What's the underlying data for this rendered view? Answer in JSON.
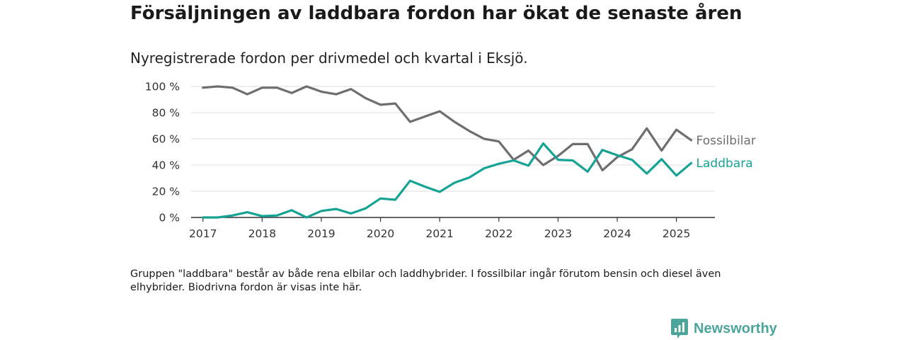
{
  "title": "Försäljningen av laddbara fordon har ökat de senaste åren",
  "subtitle": "Nyregistrerade fordon per drivmedel och kvartal i Eksjö.",
  "note": "Gruppen \"laddbara\" består av både rena elbilar och laddhybrider. I fossilbilar ingår förutom bensin och diesel även elhybrider. Biodrivna fordon är visas inte här.",
  "brand": "Newsworthy",
  "colors": {
    "fossil": "#6e6e72",
    "laddbara": "#16a393",
    "grid": "#dcdcdc",
    "axis": "#333333",
    "brand": "#4ba59a"
  },
  "chart_data": {
    "type": "line",
    "x_unit": "year (quarter start)",
    "x": [
      2017.0,
      2017.25,
      2017.5,
      2017.75,
      2018.0,
      2018.25,
      2018.5,
      2018.75,
      2019.0,
      2019.25,
      2019.5,
      2019.75,
      2020.0,
      2020.25,
      2020.5,
      2020.75,
      2021.0,
      2021.25,
      2021.5,
      2021.75,
      2022.0,
      2022.25,
      2022.5,
      2022.75,
      2023.0,
      2023.25,
      2023.5,
      2023.75,
      2024.0,
      2024.25,
      2024.5,
      2024.75,
      2025.0,
      2025.25
    ],
    "series": [
      {
        "name": "Fossilbilar",
        "color": "#6e6e72",
        "values": [
          99,
          100,
          99,
          94,
          99,
          99,
          95,
          100,
          96,
          94,
          98,
          91,
          86,
          87,
          73,
          77,
          81,
          73,
          66,
          60,
          58,
          44,
          51,
          40,
          47,
          56,
          56,
          36,
          46,
          52,
          68,
          51,
          67,
          59
        ]
      },
      {
        "name": "Laddbara",
        "color": "#16a393",
        "values": [
          0,
          0,
          1.5,
          4,
          1,
          1.5,
          5.5,
          0,
          5,
          6.5,
          3,
          7,
          14.5,
          13.5,
          28,
          23.5,
          19.5,
          26.5,
          30.5,
          37.5,
          41,
          43.5,
          39.5,
          56.5,
          44,
          43.5,
          35,
          51.5,
          47.5,
          44,
          33.5,
          44.5,
          32,
          41.5
        ]
      }
    ],
    "xticks": [
      "2017",
      "2018",
      "2019",
      "2020",
      "2021",
      "2022",
      "2023",
      "2024",
      "2025"
    ],
    "yticks": [
      "0 %",
      "20 %",
      "40 %",
      "60 %",
      "80 %",
      "100 %"
    ],
    "xlim": [
      2016.8,
      2025.65
    ],
    "ylim": [
      0,
      100
    ],
    "grid": "horizontal"
  }
}
